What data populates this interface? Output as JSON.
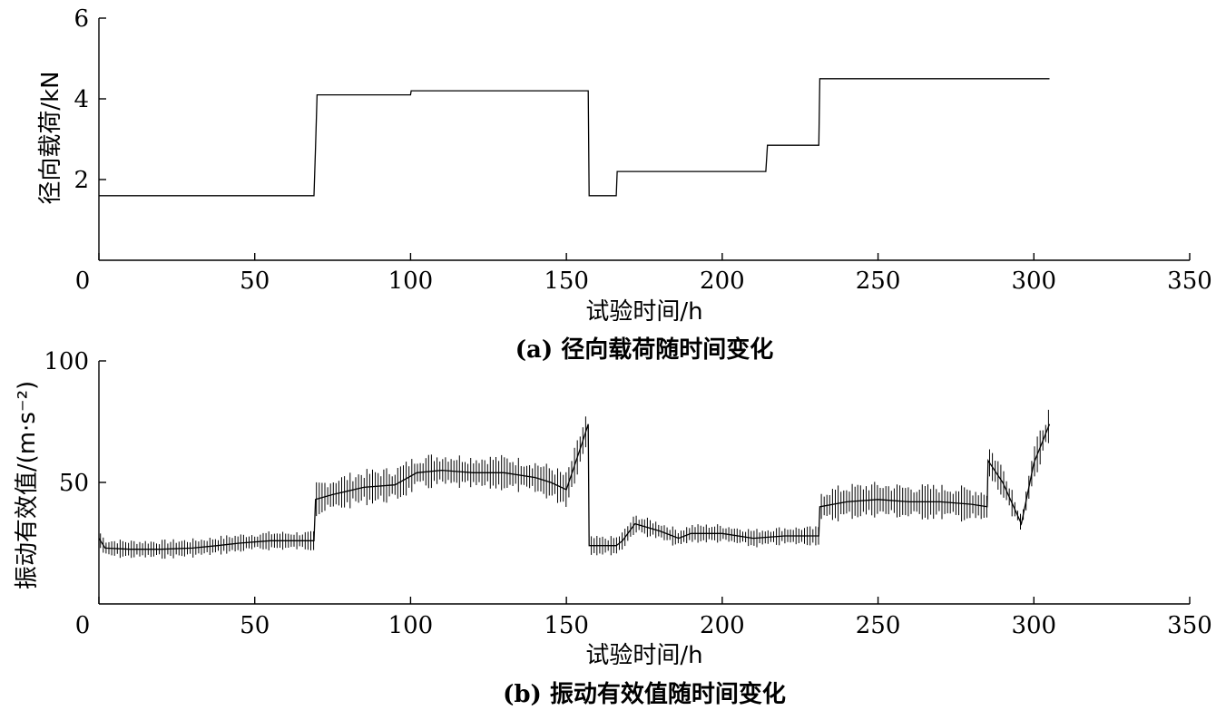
{
  "chart_data": [
    {
      "type": "line",
      "ylabel": "径向载荷/kN",
      "xlabel": "试验时间/h",
      "caption": "(a) 径向载荷随时间变化",
      "xlim": [
        0,
        350
      ],
      "ylim": [
        0,
        6
      ],
      "xticks": [
        0,
        50,
        100,
        150,
        200,
        250,
        300,
        350
      ],
      "yticks": [
        2,
        4,
        6
      ],
      "grid": false,
      "series": [
        {
          "x": [
            0,
            69,
            69.5,
            70,
            100,
            100.2,
            157,
            157.3,
            166,
            166.3,
            214,
            214.5,
            218,
            218.3,
            231,
            231.3,
            305
          ],
          "y": [
            1.6,
            1.6,
            2.8,
            4.1,
            4.1,
            4.2,
            4.2,
            1.6,
            1.6,
            2.2,
            2.2,
            2.85,
            2.85,
            2.85,
            2.85,
            4.5,
            4.5
          ],
          "values": [
            1.6,
            1.6,
            2.8,
            4.1,
            4.1,
            4.2,
            4.2,
            1.6,
            1.6,
            2.2,
            2.2,
            2.85,
            2.85,
            2.85,
            2.85,
            4.5,
            4.5
          ]
        }
      ]
    },
    {
      "type": "line",
      "ylabel": "振动有效值/(m·s⁻²)",
      "xlabel": "试验时间/h",
      "caption": "(b) 振动有效值随时间变化",
      "xlim": [
        0,
        350
      ],
      "ylim": [
        0,
        100
      ],
      "xticks": [
        0,
        50,
        100,
        150,
        200,
        250,
        300,
        350
      ],
      "yticks": [
        50,
        100
      ],
      "grid": false,
      "series": [
        {
          "x": [
            0,
            2,
            10,
            20,
            30,
            38,
            45,
            55,
            62,
            69,
            69.5,
            75,
            85,
            95,
            102,
            110,
            120,
            130,
            140,
            145,
            150,
            155,
            157,
            157.3,
            160,
            166,
            168,
            172,
            180,
            186,
            190,
            200,
            210,
            220,
            231,
            231.3,
            240,
            250,
            260,
            270,
            280,
            285,
            285.3,
            290,
            296,
            300,
            305
          ],
          "y": [
            27,
            23,
            22.5,
            22.5,
            23,
            24,
            25,
            26,
            26,
            26,
            43,
            45,
            48,
            49,
            54,
            55,
            54,
            54,
            52,
            50,
            47,
            66,
            74,
            24,
            24,
            24,
            26,
            33,
            30,
            27,
            29,
            29,
            27,
            28,
            28,
            40,
            42,
            43,
            42,
            42,
            41,
            40,
            59,
            50,
            33,
            58,
            74
          ],
          "values": [
            27,
            23,
            22.5,
            22.5,
            23,
            24,
            25,
            26,
            26,
            26,
            43,
            45,
            48,
            49,
            54,
            55,
            54,
            54,
            52,
            50,
            47,
            66,
            74,
            24,
            24,
            24,
            26,
            33,
            30,
            27,
            29,
            29,
            27,
            28,
            28,
            40,
            42,
            43,
            42,
            42,
            41,
            40,
            59,
            50,
            33,
            58,
            74
          ]
        }
      ]
    }
  ]
}
